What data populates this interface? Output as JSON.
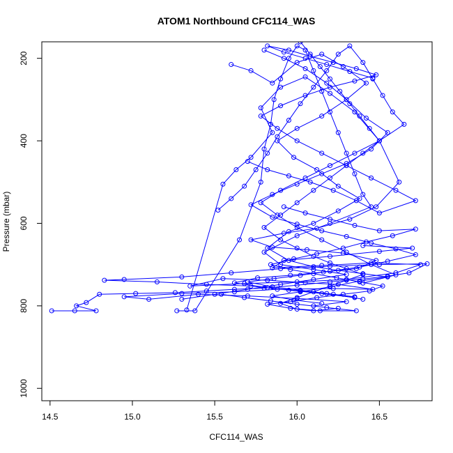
{
  "chart_data": {
    "type": "scatter",
    "title": "ATOM1 Northbound CFC114_WAS",
    "xlabel": "CFC114_WAS",
    "ylabel": "Pressure (mbar)",
    "xlim": [
      14.45,
      16.82
    ],
    "ylim": [
      1030,
      160
    ],
    "y_axis_inverted": true,
    "grid": false,
    "xticks": [
      14.5,
      15.0,
      15.5,
      16.0,
      16.5
    ],
    "xtick_labels": [
      "14.5",
      "15.0",
      "15.5",
      "16.0",
      "16.5"
    ],
    "yticks": [
      200,
      400,
      600,
      800,
      1000
    ],
    "ytick_labels": [
      "200",
      "400",
      "600",
      "800",
      "1000"
    ],
    "series_color": "#0000ff",
    "marker": "open-circle",
    "connected": true,
    "series": [
      {
        "points": [
          [
            14.51,
            812
          ],
          [
            14.65,
            812
          ],
          [
            14.78,
            812
          ],
          [
            14.66,
            800
          ],
          [
            14.72,
            792
          ],
          [
            14.8,
            772
          ],
          [
            15.02,
            770
          ],
          [
            15.26,
            768
          ],
          [
            15.45,
            764
          ],
          [
            15.62,
            760
          ],
          [
            15.8,
            757
          ],
          [
            16.0,
            750
          ],
          [
            16.2,
            742
          ],
          [
            16.4,
            735
          ],
          [
            16.55,
            728
          ],
          [
            16.68,
            720
          ],
          [
            16.79,
            698
          ],
          [
            16.5,
            700
          ],
          [
            16.2,
            704
          ],
          [
            15.9,
            710
          ],
          [
            15.6,
            720
          ],
          [
            15.3,
            730
          ],
          [
            14.95,
            736
          ],
          [
            14.83,
            738
          ],
          [
            15.15,
            742
          ],
          [
            15.45,
            748
          ],
          [
            15.72,
            752
          ],
          [
            15.95,
            762
          ],
          [
            16.15,
            770
          ],
          [
            16.35,
            780
          ]
        ]
      },
      {
        "points": [
          [
            16.1,
            800
          ],
          [
            16.3,
            790
          ],
          [
            16.0,
            782
          ],
          [
            15.7,
            776
          ],
          [
            15.4,
            772
          ],
          [
            15.1,
            784
          ],
          [
            14.95,
            778
          ],
          [
            15.3,
            770
          ],
          [
            15.62,
            766
          ],
          [
            15.88,
            760
          ],
          [
            16.22,
            758
          ],
          [
            16.46,
            760
          ],
          [
            16.25,
            748
          ],
          [
            16.05,
            744
          ],
          [
            15.82,
            738
          ],
          [
            15.55,
            734
          ],
          [
            15.35,
            752
          ],
          [
            15.68,
            746
          ],
          [
            16.0,
            742
          ],
          [
            16.3,
            736
          ],
          [
            16.6,
            720
          ],
          [
            16.75,
            700
          ],
          [
            16.45,
            696
          ],
          [
            16.15,
            702
          ],
          [
            15.85,
            708
          ],
          [
            15.92,
            690
          ],
          [
            16.2,
            680
          ],
          [
            16.5,
            668
          ],
          [
            16.7,
            660
          ],
          [
            16.4,
            654
          ]
        ]
      },
      {
        "points": [
          [
            15.27,
            812
          ],
          [
            15.38,
            812
          ],
          [
            15.65,
            640
          ],
          [
            15.78,
            500
          ],
          [
            15.8,
            420
          ],
          [
            15.84,
            360
          ],
          [
            15.86,
            300
          ],
          [
            15.9,
            250
          ],
          [
            15.95,
            200
          ],
          [
            16.0,
            170
          ],
          [
            16.05,
            180
          ],
          [
            16.1,
            230
          ],
          [
            16.15,
            280
          ],
          [
            16.2,
            330
          ],
          [
            16.25,
            380
          ],
          [
            16.3,
            430
          ],
          [
            16.35,
            480
          ],
          [
            16.4,
            530
          ],
          [
            16.45,
            560
          ],
          [
            16.2,
            600
          ],
          [
            16.0,
            630
          ],
          [
            15.8,
            670
          ],
          [
            15.9,
            700
          ],
          [
            16.1,
            712
          ],
          [
            16.3,
            724
          ],
          [
            16.1,
            736
          ],
          [
            15.9,
            748
          ],
          [
            15.7,
            760
          ],
          [
            15.5,
            772
          ],
          [
            15.3,
            784
          ]
        ]
      },
      {
        "points": [
          [
            15.33,
            810
          ],
          [
            15.55,
            505
          ],
          [
            15.63,
            470
          ],
          [
            15.72,
            440
          ],
          [
            15.85,
            380
          ],
          [
            15.78,
            320
          ],
          [
            15.9,
            270
          ],
          [
            16.05,
            245
          ],
          [
            16.2,
            285
          ],
          [
            16.35,
            330
          ],
          [
            16.5,
            400
          ],
          [
            16.62,
            500
          ],
          [
            16.48,
            560
          ],
          [
            16.32,
            590
          ],
          [
            16.12,
            612
          ],
          [
            15.92,
            624
          ],
          [
            15.72,
            640
          ],
          [
            15.85,
            658
          ],
          [
            16.06,
            664
          ],
          [
            16.28,
            672
          ],
          [
            16.48,
            690
          ],
          [
            16.36,
            710
          ],
          [
            16.16,
            718
          ],
          [
            15.96,
            726
          ],
          [
            15.76,
            732
          ],
          [
            15.62,
            744
          ],
          [
            15.82,
            756
          ],
          [
            16.02,
            764
          ],
          [
            16.22,
            772
          ],
          [
            16.4,
            784
          ]
        ]
      },
      {
        "points": [
          [
            15.52,
            568
          ],
          [
            15.6,
            540
          ],
          [
            15.68,
            510
          ],
          [
            15.75,
            470
          ],
          [
            15.82,
            430
          ],
          [
            15.88,
            390
          ],
          [
            15.95,
            350
          ],
          [
            16.02,
            310
          ],
          [
            16.1,
            270
          ],
          [
            16.18,
            230
          ],
          [
            16.25,
            190
          ],
          [
            16.32,
            170
          ],
          [
            16.4,
            210
          ],
          [
            16.46,
            250
          ],
          [
            16.52,
            290
          ],
          [
            16.58,
            330
          ],
          [
            16.65,
            360
          ],
          [
            16.5,
            400
          ],
          [
            16.35,
            430
          ],
          [
            16.2,
            460
          ],
          [
            16.05,
            490
          ],
          [
            15.9,
            520
          ],
          [
            15.78,
            550
          ],
          [
            15.88,
            580
          ],
          [
            16.0,
            610
          ],
          [
            16.15,
            640
          ],
          [
            16.3,
            670
          ],
          [
            16.45,
            700
          ],
          [
            16.6,
            725
          ],
          [
            16.4,
            745
          ]
        ]
      },
      {
        "points": [
          [
            15.6,
            215
          ],
          [
            15.72,
            230
          ],
          [
            15.85,
            260
          ],
          [
            16.0,
            210
          ],
          [
            16.15,
            190
          ],
          [
            16.28,
            220
          ],
          [
            16.42,
            260
          ],
          [
            16.3,
            300
          ],
          [
            16.15,
            340
          ],
          [
            16.0,
            370
          ],
          [
            15.88,
            400
          ],
          [
            15.98,
            440
          ],
          [
            16.12,
            470
          ],
          [
            16.25,
            510
          ],
          [
            16.38,
            540
          ],
          [
            16.25,
            570
          ],
          [
            16.1,
            600
          ],
          [
            15.95,
            620
          ],
          [
            15.82,
            660
          ],
          [
            15.95,
            690
          ],
          [
            16.1,
            705
          ],
          [
            16.25,
            714
          ],
          [
            16.4,
            722
          ],
          [
            16.55,
            730
          ],
          [
            16.38,
            740
          ],
          [
            16.2,
            754
          ],
          [
            16.02,
            766
          ],
          [
            15.85,
            776
          ],
          [
            15.98,
            786
          ],
          [
            16.15,
            794
          ]
        ]
      },
      {
        "points": [
          [
            15.8,
            180
          ],
          [
            15.92,
            200
          ],
          [
            16.05,
            225
          ],
          [
            16.18,
            260
          ],
          [
            16.3,
            300
          ],
          [
            16.42,
            345
          ],
          [
            16.55,
            380
          ],
          [
            16.45,
            420
          ],
          [
            16.3,
            455
          ],
          [
            16.15,
            480
          ],
          [
            16.0,
            505
          ],
          [
            15.85,
            530
          ],
          [
            15.72,
            555
          ],
          [
            15.85,
            585
          ],
          [
            16.0,
            602
          ],
          [
            16.15,
            618
          ],
          [
            16.3,
            632
          ],
          [
            16.45,
            648
          ],
          [
            16.6,
            662
          ],
          [
            16.72,
            676
          ],
          [
            16.55,
            692
          ],
          [
            16.38,
            706
          ],
          [
            16.2,
            716
          ],
          [
            16.02,
            726
          ],
          [
            15.86,
            734
          ],
          [
            15.7,
            742
          ],
          [
            15.85,
            754
          ],
          [
            16.02,
            762
          ],
          [
            16.18,
            770
          ],
          [
            16.35,
            778
          ]
        ]
      },
      {
        "points": [
          [
            15.7,
            450
          ],
          [
            15.82,
            470
          ],
          [
            15.95,
            485
          ],
          [
            16.08,
            500
          ],
          [
            16.22,
            520
          ],
          [
            16.36,
            545
          ],
          [
            16.5,
            575
          ],
          [
            16.72,
            545
          ],
          [
            16.6,
            520
          ],
          [
            16.45,
            490
          ],
          [
            16.3,
            460
          ],
          [
            16.15,
            430
          ],
          [
            16.0,
            400
          ],
          [
            15.88,
            370
          ],
          [
            15.78,
            340
          ],
          [
            15.9,
            315
          ],
          [
            16.05,
            290
          ],
          [
            16.2,
            270
          ],
          [
            16.35,
            255
          ],
          [
            16.48,
            240
          ],
          [
            16.36,
            225
          ],
          [
            16.22,
            210
          ],
          [
            16.08,
            195
          ],
          [
            15.95,
            180
          ],
          [
            15.82,
            170
          ],
          [
            15.92,
            185
          ],
          [
            16.05,
            200
          ],
          [
            16.18,
            215
          ],
          [
            16.32,
            232
          ],
          [
            16.46,
            248
          ]
        ]
      },
      {
        "points": [
          [
            15.92,
            560
          ],
          [
            16.05,
            575
          ],
          [
            16.2,
            590
          ],
          [
            16.35,
            605
          ],
          [
            16.5,
            618
          ],
          [
            16.72,
            614
          ],
          [
            16.58,
            630
          ],
          [
            16.42,
            645
          ],
          [
            16.28,
            660
          ],
          [
            16.12,
            674
          ],
          [
            15.98,
            686
          ],
          [
            15.84,
            700
          ],
          [
            15.96,
            712
          ],
          [
            16.1,
            722
          ],
          [
            16.24,
            732
          ],
          [
            16.38,
            742
          ],
          [
            16.52,
            752
          ],
          [
            16.44,
            764
          ],
          [
            16.28,
            772
          ],
          [
            16.12,
            780
          ],
          [
            15.96,
            790
          ],
          [
            15.82,
            796
          ],
          [
            15.96,
            806
          ],
          [
            16.14,
            812
          ],
          [
            16.36,
            812
          ],
          [
            16.18,
            804
          ],
          [
            16.0,
            796
          ],
          [
            15.84,
            788
          ],
          [
            15.68,
            780
          ],
          [
            15.54,
            772
          ]
        ]
      },
      {
        "points": [
          [
            16.02,
            160
          ],
          [
            16.08,
            190
          ],
          [
            16.14,
            220
          ],
          [
            16.2,
            250
          ],
          [
            16.26,
            280
          ],
          [
            16.32,
            310
          ],
          [
            16.38,
            340
          ],
          [
            16.44,
            370
          ],
          [
            16.5,
            400
          ],
          [
            16.4,
            430
          ],
          [
            16.3,
            460
          ],
          [
            16.2,
            490
          ],
          [
            16.1,
            520
          ],
          [
            16.0,
            550
          ],
          [
            15.9,
            580
          ],
          [
            15.8,
            610
          ],
          [
            15.9,
            640
          ],
          [
            16.0,
            660
          ],
          [
            16.1,
            680
          ],
          [
            16.2,
            696
          ],
          [
            16.3,
            710
          ],
          [
            16.4,
            724
          ],
          [
            16.3,
            738
          ],
          [
            16.2,
            752
          ],
          [
            16.1,
            766
          ],
          [
            16.0,
            780
          ],
          [
            15.9,
            794
          ],
          [
            16.0,
            808
          ],
          [
            16.1,
            812
          ],
          [
            16.25,
            806
          ]
        ]
      }
    ]
  }
}
